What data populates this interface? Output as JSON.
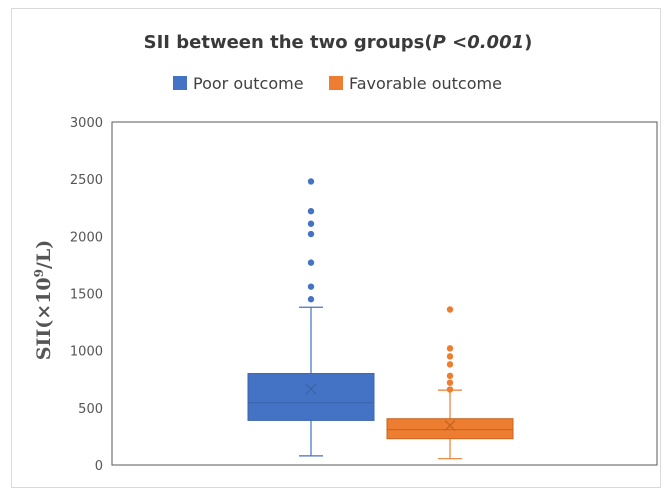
{
  "chart_data": {
    "type": "box",
    "title_prefix": "SII between the two groups(",
    "title_p": "P",
    "title_sign": " <",
    "title_value": "0.001",
    "title_suffix": ")",
    "ylabel_main": "SII(×10",
    "ylabel_sup": "9",
    "ylabel_end": "/L)",
    "xlabel": "",
    "ylim": [
      0,
      3000
    ],
    "yticks": [
      "0",
      "500",
      "1000",
      "1500",
      "2000",
      "2500",
      "3000"
    ],
    "grid": false,
    "legend_position": "top",
    "series": [
      {
        "name": "Poor outcome",
        "color": "#4472C4",
        "stroke": "#3b64ad",
        "min": 80,
        "q1": 390,
        "median": 545,
        "q3": 800,
        "max": 1380,
        "mean": 665,
        "outliers": [
          1450,
          1560,
          1770,
          2020,
          2110,
          2220,
          2480
        ]
      },
      {
        "name": "Favorable outcome",
        "color": "#ED7D31",
        "stroke": "#c8651f",
        "min": 55,
        "q1": 230,
        "median": 310,
        "q3": 405,
        "max": 655,
        "mean": 345,
        "outliers": [
          660,
          720,
          780,
          880,
          950,
          1020,
          1360
        ]
      }
    ]
  }
}
